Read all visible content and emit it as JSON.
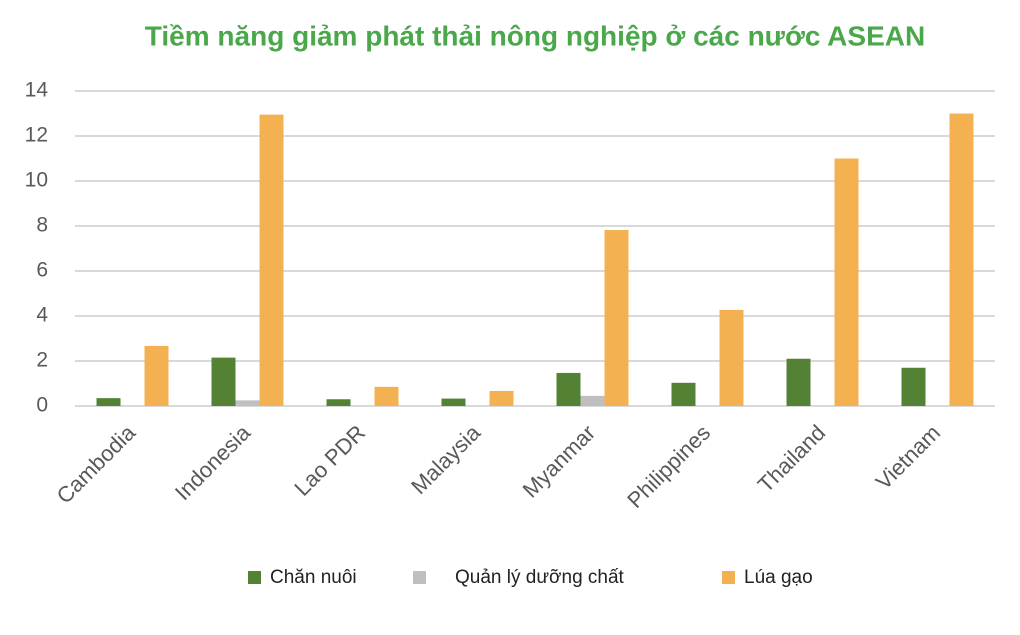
{
  "chart_data": {
    "type": "bar",
    "title": "Tiềm năng giảm phát thải nông nghiệp ở các nước ASEAN",
    "categories": [
      "Cambodia",
      "Indonesia",
      "Lao PDR",
      "Malaysia",
      "Myanmar",
      "Philippines",
      "Thailand",
      "Vietnam"
    ],
    "series": [
      {
        "name": "Chăn nuôi",
        "color": "#548235",
        "values": [
          0.35,
          2.15,
          0.3,
          0.33,
          1.47,
          1.03,
          2.1,
          1.7
        ]
      },
      {
        "name": "Quản lý dưỡng chất",
        "color": "#bfbfbf",
        "values": [
          0,
          0.25,
          0,
          0,
          0.45,
          0,
          0,
          0
        ]
      },
      {
        "name": "Lúa gạo",
        "color": "#f4b152",
        "values": [
          2.67,
          12.95,
          0.85,
          0.67,
          7.82,
          4.27,
          11,
          13
        ]
      }
    ],
    "ylim": [
      0,
      14
    ],
    "yticks": [
      0,
      2,
      4,
      6,
      8,
      10,
      12,
      14
    ],
    "grid": true,
    "legend": "bottom"
  }
}
